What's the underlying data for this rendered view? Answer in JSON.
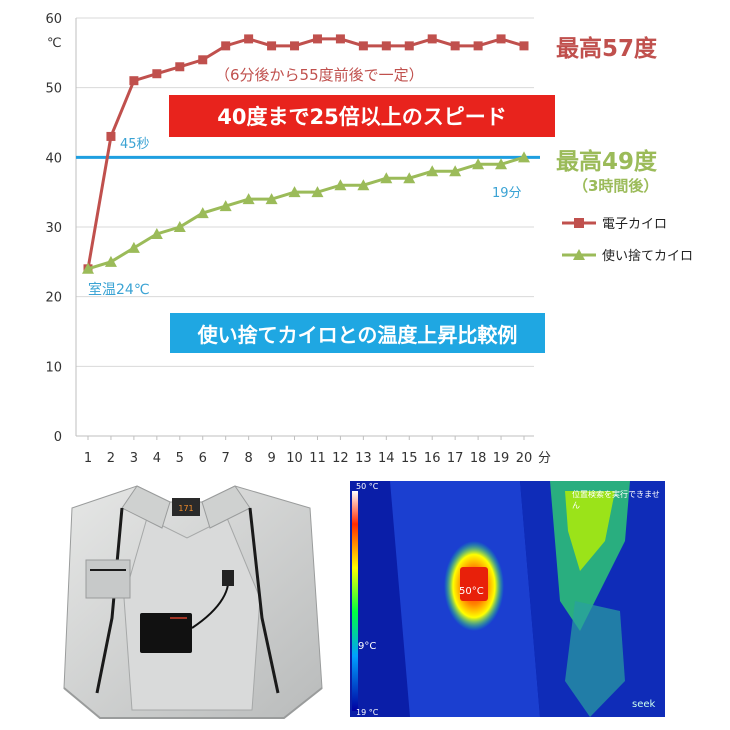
{
  "chart_data": {
    "type": "line",
    "x": [
      1,
      2,
      3,
      4,
      5,
      6,
      7,
      8,
      9,
      10,
      11,
      12,
      13,
      14,
      15,
      16,
      17,
      18,
      19,
      20
    ],
    "xlabel": "分",
    "ylabel": "℃",
    "ylim": [
      0,
      60
    ],
    "yticks": [
      0,
      10,
      20,
      30,
      40,
      50,
      60
    ],
    "reference_line": 40,
    "series": [
      {
        "name": "電子カイロ",
        "color": "#c0504d",
        "marker": "square",
        "values": [
          24,
          43,
          51,
          52,
          53,
          54,
          56,
          57,
          56,
          56,
          57,
          57,
          56,
          56,
          56,
          57,
          56,
          56,
          57,
          56
        ]
      },
      {
        "name": "使い捨てカイロ",
        "color": "#9bbb59",
        "marker": "triangle",
        "values": [
          24,
          25,
          27,
          29,
          30,
          32,
          33,
          34,
          34,
          35,
          35,
          36,
          36,
          37,
          37,
          38,
          38,
          39,
          39,
          40
        ]
      }
    ]
  },
  "annotations": {
    "max_electric": "最高57度",
    "note_electric": "（6分後から55度前後で一定）",
    "speed_banner": "40度まで25倍以上のスピード",
    "max_disposable": "最高49度",
    "note_disposable": "（3時間後）",
    "label_45s": "45秒",
    "label_19min": "19分",
    "room_temp": "室温24℃",
    "comparison_banner": "使い捨てカイロとの温度上昇比較例"
  },
  "photo_vest": {
    "tag": "171"
  },
  "photo_thermal": {
    "scale_top": "50 °C",
    "scale_bottom": "19 °C",
    "hot_label": "50°C",
    "cold_label": "9°C",
    "status": "位置検索を実行できません",
    "brand": "seek"
  }
}
